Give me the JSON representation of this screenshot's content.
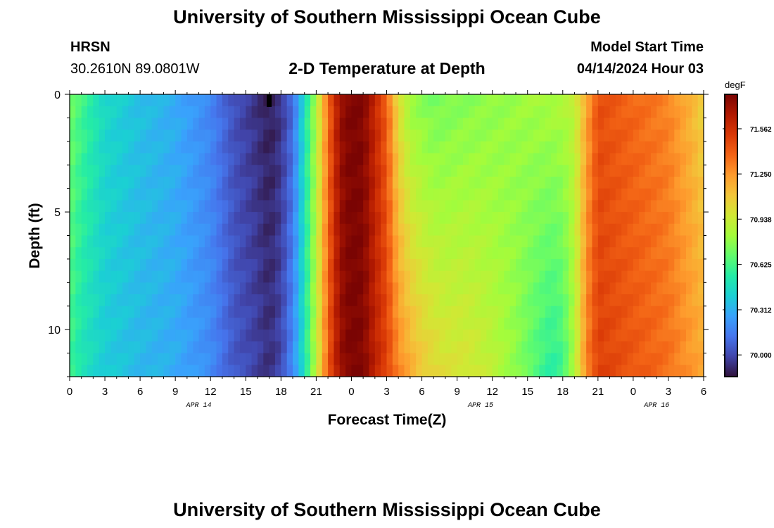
{
  "header": {
    "title": "University of Southern Mississippi Ocean Cube",
    "station_name": "HRSN",
    "coordinates": "30.2610N  89.0801W",
    "model_start_label": "Model Start Time",
    "model_start_time": "04/14/2024 Hour 03"
  },
  "footer": {
    "title": "University of Southern Mississippi Ocean Cube"
  },
  "chart_data": {
    "type": "heatmap",
    "title": "2-D Temperature at Depth",
    "xlabel": "Forecast Time(Z)",
    "ylabel": "Depth (ft)",
    "x_range_hours": [
      0,
      54
    ],
    "x_tick_labels": [
      "0",
      "3",
      "6",
      "9",
      "12",
      "15",
      "18",
      "21",
      "0",
      "3",
      "6",
      "9",
      "12",
      "15",
      "18",
      "21",
      "0",
      "3",
      "6"
    ],
    "date_labels": [
      {
        "text": "APR 14",
        "at_hour": 11
      },
      {
        "text": "APR 15",
        "at_hour": 35
      },
      {
        "text": "APR 16",
        "at_hour": 50
      }
    ],
    "y_range": [
      0,
      12
    ],
    "y_ticks": [
      0,
      5,
      10
    ],
    "colorbar": {
      "unit": "degF",
      "vmin": 69.85,
      "vmax": 71.8,
      "ticks": [
        "71.562",
        "71.250",
        "70.938",
        "70.625",
        "70.312",
        "70.000"
      ],
      "colors": [
        "#30123b",
        "#4145ab",
        "#4675ed",
        "#39a2fc",
        "#1bcfd4",
        "#24eca6",
        "#61fc6c",
        "#a4fc3b",
        "#d1e834",
        "#f3c63a",
        "#fe9b2d",
        "#f36315",
        "#d93806",
        "#b11901",
        "#7a0403"
      ]
    },
    "time_profile_surface_degF": [
      [
        0,
        70.72
      ],
      [
        1,
        70.62
      ],
      [
        3,
        70.45
      ],
      [
        6,
        70.36
      ],
      [
        9,
        70.3
      ],
      [
        12,
        70.18
      ],
      [
        14,
        70.02
      ],
      [
        16,
        69.93
      ],
      [
        17,
        69.88
      ],
      [
        18,
        69.94
      ],
      [
        19,
        70.1
      ],
      [
        20,
        70.48
      ],
      [
        21,
        70.85
      ],
      [
        22,
        71.35
      ],
      [
        23,
        71.72
      ],
      [
        24,
        71.8
      ],
      [
        25,
        71.78
      ],
      [
        26,
        71.6
      ],
      [
        27,
        71.4
      ],
      [
        28,
        71.0
      ],
      [
        29,
        70.8
      ],
      [
        31,
        70.72
      ],
      [
        33,
        70.75
      ],
      [
        36,
        70.78
      ],
      [
        39,
        70.82
      ],
      [
        42,
        70.86
      ],
      [
        43,
        70.9
      ],
      [
        44,
        71.2
      ],
      [
        45,
        71.45
      ],
      [
        47,
        71.4
      ],
      [
        49,
        71.35
      ],
      [
        51,
        71.3
      ],
      [
        53,
        71.15
      ],
      [
        54,
        71.05
      ]
    ],
    "time_profile_bottom_degF": [
      [
        0,
        70.6
      ],
      [
        1,
        70.5
      ],
      [
        3,
        70.4
      ],
      [
        6,
        70.34
      ],
      [
        9,
        70.3
      ],
      [
        12,
        70.2
      ],
      [
        14,
        70.05
      ],
      [
        16,
        69.98
      ],
      [
        17,
        69.93
      ],
      [
        18,
        70.0
      ],
      [
        19,
        70.2
      ],
      [
        20,
        70.5
      ],
      [
        21,
        70.9
      ],
      [
        22,
        71.4
      ],
      [
        23,
        71.72
      ],
      [
        24,
        71.8
      ],
      [
        25,
        71.78
      ],
      [
        26,
        71.62
      ],
      [
        27,
        71.5
      ],
      [
        28,
        71.3
      ],
      [
        29,
        71.2
      ],
      [
        30,
        71.1
      ],
      [
        32,
        71.0
      ],
      [
        34,
        70.98
      ],
      [
        36,
        70.9
      ],
      [
        38,
        70.78
      ],
      [
        40,
        70.62
      ],
      [
        41,
        70.55
      ],
      [
        42,
        70.6
      ],
      [
        43,
        70.85
      ],
      [
        44,
        71.3
      ],
      [
        45,
        71.5
      ],
      [
        47,
        71.45
      ],
      [
        49,
        71.4
      ],
      [
        51,
        71.35
      ],
      [
        53,
        71.25
      ],
      [
        54,
        71.2
      ]
    ]
  }
}
